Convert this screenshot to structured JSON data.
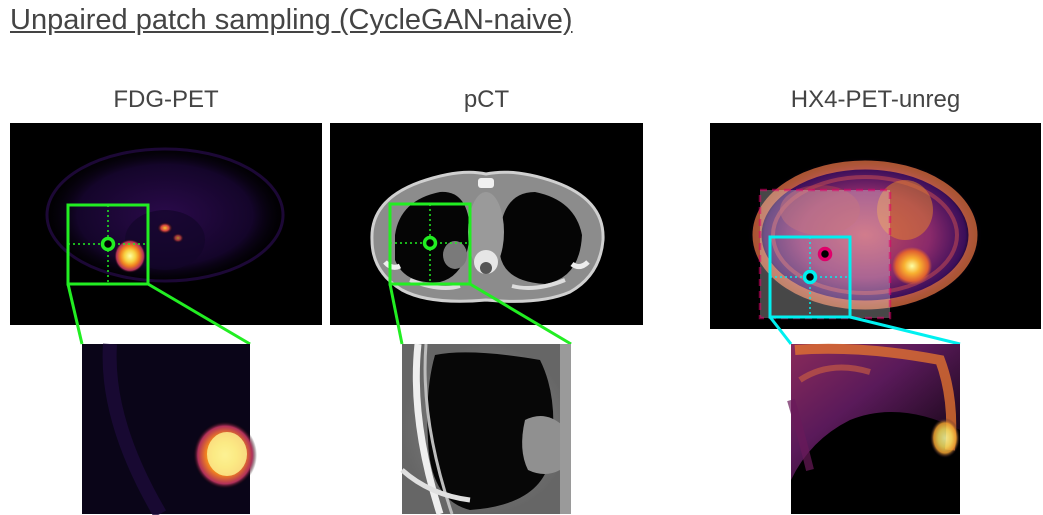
{
  "figure": {
    "title": "Unpaired patch sampling (CycleGAN-naive)"
  },
  "panels": [
    {
      "id": "fdg",
      "label": "FDG-PET",
      "box_color": "#22ee22"
    },
    {
      "id": "pct",
      "label": "pCT",
      "box_color": "#22ee22"
    },
    {
      "id": "hx4",
      "label": "HX4-PET-unreg",
      "box_color": "#00f0f0",
      "ghost_marker_color": "#e0006a"
    }
  ]
}
